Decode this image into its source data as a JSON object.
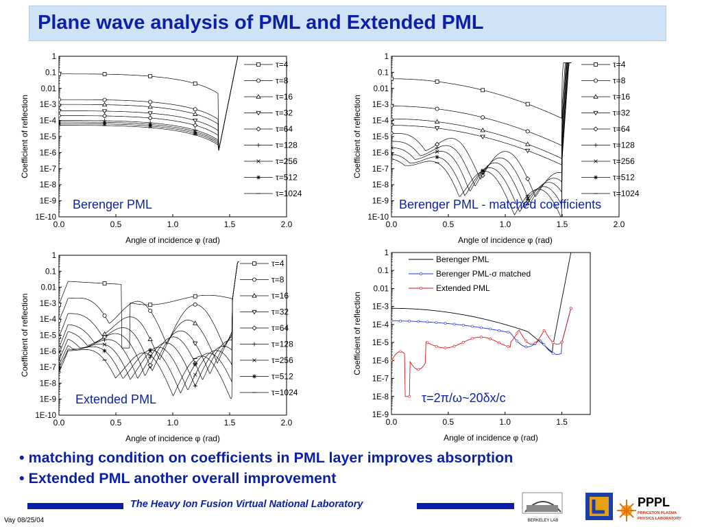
{
  "title": "Plane wave analysis of PML  and Extended PML",
  "bullets": [
    "matching condition on  coefficients in PML layer improves absorption",
    "Extended PML another overall improvement"
  ],
  "footer": {
    "text": "The Heavy Ion Fusion Virtual National Laboratory",
    "date": "Vay 08/25/04"
  },
  "logos": {
    "berkeley": "BERKELEY LAB",
    "pppl": "PPPL",
    "pppl_sub1": "PRINCETON PLASMA",
    "pppl_sub2": "PHYSICS LABORATORY"
  },
  "colors": {
    "title_blue": "#0b1fa8",
    "title_bg": "#cfe2f6",
    "blue_series": "#1a2fe0",
    "red_series": "#e01010"
  },
  "chart_data": [
    {
      "type": "line",
      "title": "Berenger PML",
      "xlabel": "Angle of incidence φ (rad)",
      "ylabel": "Coefficient of reflection",
      "xlim": [
        0,
        2
      ],
      "xticks": [
        "0.0",
        "0.5",
        "1.0",
        "1.5",
        "2.0"
      ],
      "ylim_log10": [
        -10,
        0
      ],
      "yticks": [
        "1",
        "0.1",
        "0.01",
        "1E-3",
        "1E-4",
        "1E-5",
        "1E-6",
        "1E-7",
        "1E-8",
        "1E-9",
        "1E-10"
      ],
      "legend": "right",
      "series": [
        {
          "name": "τ=4",
          "marker": "square",
          "r0_log10": -1.1
        },
        {
          "name": "τ=8",
          "marker": "circle",
          "r0_log10": -2.7
        },
        {
          "name": "τ=16",
          "marker": "triangle-up",
          "r0_log10": -3.0
        },
        {
          "name": "τ=32",
          "marker": "triangle-down",
          "r0_log10": -3.4
        },
        {
          "name": "τ=64",
          "marker": "diamond",
          "r0_log10": -3.7
        },
        {
          "name": "τ=128",
          "marker": "plus",
          "r0_log10": -4.0
        },
        {
          "name": "τ=256",
          "marker": "x",
          "r0_log10": -4.1
        },
        {
          "name": "τ=512",
          "marker": "star",
          "r0_log10": -4.2
        },
        {
          "name": "τ=1024",
          "marker": "dash",
          "r0_log10": -4.3
        }
      ]
    },
    {
      "type": "line",
      "title": "Berenger PML - matched coefficients",
      "xlabel": "Angle of incidence φ (rad)",
      "ylabel": "Coefficient of reflection",
      "xlim": [
        0,
        2
      ],
      "xticks": [
        "0.0",
        "0.5",
        "1.0",
        "1.5",
        "2.0"
      ],
      "ylim_log10": [
        -10,
        0
      ],
      "yticks": [
        "1",
        "0.1",
        "0.01",
        "1E-3",
        "1E-4",
        "1E-5",
        "1E-6",
        "1E-7",
        "1E-8",
        "1E-9",
        "1E-10"
      ],
      "legend": "right",
      "series": [
        {
          "name": "τ=4",
          "marker": "square",
          "r0_log10": -1.4
        },
        {
          "name": "τ=8",
          "marker": "circle",
          "r0_log10": -3.1
        },
        {
          "name": "τ=16",
          "marker": "triangle-up",
          "r0_log10": -3.9
        },
        {
          "name": "τ=32",
          "marker": "triangle-down",
          "r0_log10": -4.3
        },
        {
          "name": "τ=64",
          "marker": "diamond",
          "r0_log10": -4.8
        },
        {
          "name": "τ=128",
          "marker": "plus",
          "r0_log10": -5.3
        },
        {
          "name": "τ=256",
          "marker": "x",
          "r0_log10": -5.7
        },
        {
          "name": "τ=512",
          "marker": "star",
          "r0_log10": -6.1
        },
        {
          "name": "τ=1024",
          "marker": "dash",
          "r0_log10": -6.4
        }
      ]
    },
    {
      "type": "line",
      "title": "Extended PML",
      "xlabel": "Angle of incidence φ (rad)",
      "ylabel": "Coefficient of reflection",
      "xlim": [
        0,
        2
      ],
      "xticks": [
        "0.0",
        "0.5",
        "1.0",
        "1.5",
        "2.0"
      ],
      "ylim_log10": [
        -10,
        0
      ],
      "yticks": [
        "1",
        "0.1",
        "0.01",
        "1E-3",
        "1E-4",
        "1E-5",
        "1E-6",
        "1E-7",
        "1E-8",
        "1E-9",
        "1E-10"
      ],
      "legend": "right",
      "series": [
        {
          "name": "τ=4",
          "marker": "square",
          "r0_log10": -1.6
        },
        {
          "name": "τ=8",
          "marker": "circle",
          "r0_log10": -2.6
        },
        {
          "name": "τ=16",
          "marker": "triangle-up",
          "r0_log10": -3.6
        },
        {
          "name": "τ=32",
          "marker": "triangle-down",
          "r0_log10": -4.3
        },
        {
          "name": "τ=64",
          "marker": "diamond",
          "r0_log10": -4.7
        },
        {
          "name": "τ=128",
          "marker": "plus",
          "r0_log10": -5.1
        },
        {
          "name": "τ=256",
          "marker": "x",
          "r0_log10": -5.4
        },
        {
          "name": "τ=512",
          "marker": "star",
          "r0_log10": -5.6
        },
        {
          "name": "τ=1024",
          "marker": "dash",
          "r0_log10": -5.8
        }
      ]
    },
    {
      "type": "line",
      "title": "",
      "annotation": "τ=2π/ω~20δx/c",
      "xlabel": "Angle of incidence φ (rad)",
      "ylabel": "Coefficient of reflection",
      "xlim": [
        0,
        1.75
      ],
      "xticks": [
        "0.0",
        "0.5",
        "1.0",
        "1.5"
      ],
      "ylim_log10": [
        -9,
        0
      ],
      "yticks": [
        "1",
        "0.1",
        "0.01",
        "1E-3",
        "1E-4",
        "1E-5",
        "1E-6",
        "1E-7",
        "1E-8",
        "1E-9"
      ],
      "legend": "top-left",
      "series": [
        {
          "name": "Berenger PML",
          "color": "#000000",
          "r0_log10": -3.1
        },
        {
          "name": "Berenger PML-σ matched",
          "color": "#1a2fe0",
          "r0_log10": -3.8
        },
        {
          "name": "Extended PML",
          "color": "#e01010",
          "r0_log10": -5.3
        }
      ]
    }
  ]
}
